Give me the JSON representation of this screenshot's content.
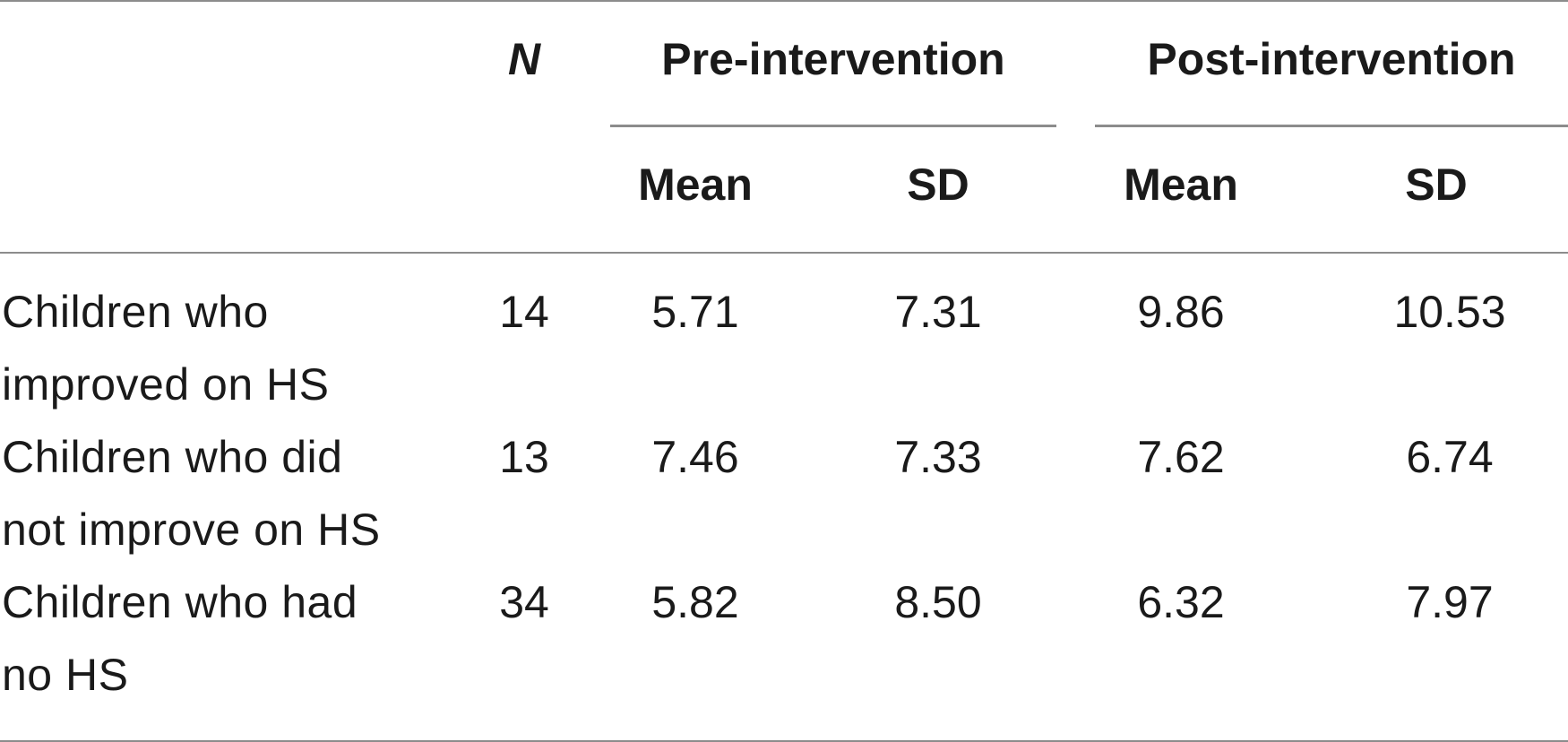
{
  "table": {
    "headers": {
      "n": "N",
      "pre": "Pre-intervention",
      "post": "Post-intervention",
      "pre_mean": "Mean",
      "pre_sd": "SD",
      "post_mean": "Mean",
      "post_sd": "SD"
    },
    "rows": [
      {
        "label": "Children who improved on HS",
        "n": "14",
        "pre_mean": "5.71",
        "pre_sd": "7.31",
        "post_mean": "9.86",
        "post_sd": "10.53"
      },
      {
        "label": "Children who did not improve on HS",
        "n": "13",
        "pre_mean": "7.46",
        "pre_sd": "7.33",
        "post_mean": "7.62",
        "post_sd": "6.74"
      },
      {
        "label": "Children who had no HS",
        "n": "34",
        "pre_mean": "5.82",
        "pre_sd": "8.50",
        "post_mean": "6.32",
        "post_sd": "7.97"
      }
    ]
  }
}
